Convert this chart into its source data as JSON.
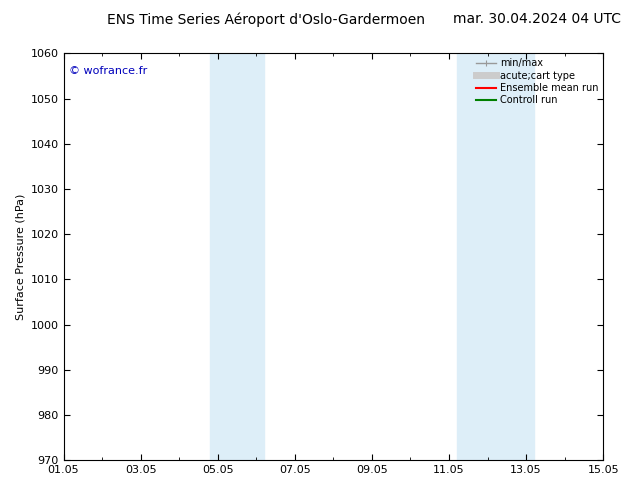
{
  "title_left": "ENS Time Series Aéroport d'Oslo-Gardermoen",
  "title_right": "mar. 30.04.2024 04 UTC",
  "ylabel": "Surface Pressure (hPa)",
  "ylim": [
    970,
    1060
  ],
  "yticks": [
    970,
    980,
    990,
    1000,
    1010,
    1020,
    1030,
    1040,
    1050,
    1060
  ],
  "xlim_start": 0,
  "xlim_end": 14,
  "xtick_labels": [
    "01.05",
    "03.05",
    "05.05",
    "07.05",
    "09.05",
    "11.05",
    "13.05",
    "15.05"
  ],
  "xtick_positions": [
    0,
    2,
    4,
    6,
    8,
    10,
    12,
    14
  ],
  "shade_bands": [
    {
      "xstart": 3.8,
      "xend": 5.2,
      "color": "#ddeef8"
    },
    {
      "xstart": 10.2,
      "xend": 12.2,
      "color": "#ddeef8"
    }
  ],
  "watermark": "© wofrance.fr",
  "watermark_color": "#0000bb",
  "legend_entries": [
    {
      "label": "min/max",
      "color": "#999999",
      "lw": 1.0
    },
    {
      "label": "acute;cart type",
      "color": "#cccccc",
      "lw": 5
    },
    {
      "label": "Ensemble mean run",
      "color": "#ff0000",
      "lw": 1.5
    },
    {
      "label": "Controll run",
      "color": "#008000",
      "lw": 1.5
    }
  ],
  "bg_color": "#ffffff",
  "plot_bg_color": "#ffffff",
  "title_fontsize": 10,
  "axis_label_fontsize": 8,
  "tick_fontsize": 8
}
